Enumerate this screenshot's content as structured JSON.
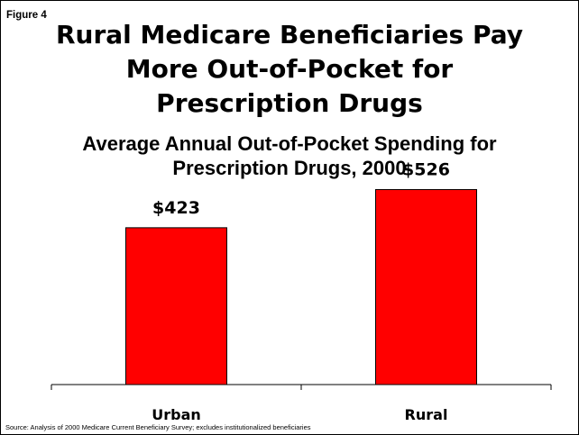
{
  "figure_label": "Figure 4",
  "title_lines": [
    "Rural Medicare Beneficiaries Pay",
    "More Out-of-Pocket for",
    "Prescription Drugs"
  ],
  "subtitle_lines": [
    "Average Annual Out-of-Pocket Spending for",
    "Prescription Drugs, 2000"
  ],
  "source": "Source:  Analysis of 2000 Medicare Current Beneficiary Survey; excludes institutionalized beneficiaries",
  "colors": {
    "bar": "#ff0000",
    "bar_outline": "#000000",
    "axis": "#000000"
  },
  "chart_data": {
    "type": "bar",
    "title": "Average Annual Out-of-Pocket Spending for Prescription Drugs, 2000",
    "categories": [
      "Urban",
      "Rural"
    ],
    "values": [
      423,
      526
    ],
    "data_labels": [
      "$423",
      "$526"
    ],
    "xlabel": "",
    "ylabel": "",
    "ylim": [
      0,
      600
    ],
    "grid": false,
    "legend": "none"
  }
}
